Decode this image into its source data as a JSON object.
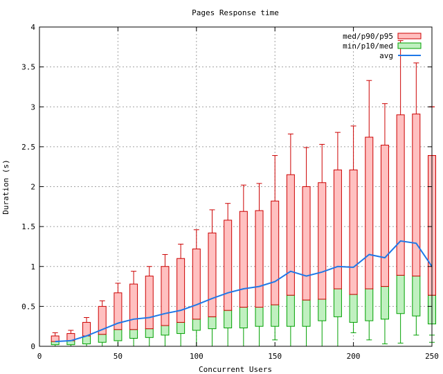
{
  "chart_data": {
    "type": "boxplot",
    "title": "Pages Response time",
    "xlabel": "Concurrent Users",
    "ylabel": "Duration (s)",
    "xlim": [
      0,
      250
    ],
    "ylim": [
      0,
      4
    ],
    "xticks": [
      "0",
      "50",
      "100",
      "150",
      "200",
      "250"
    ],
    "yticks": [
      "0",
      "0.5",
      "1",
      "1.5",
      "2",
      "2.5",
      "3",
      "3.5",
      "4"
    ],
    "grid": true,
    "legend_position": "top-right",
    "legend": [
      {
        "label": "med/p90/p95",
        "kind": "box",
        "fill": "#ffc0c0",
        "stroke": "#cc0000"
      },
      {
        "label": "min/p10/med",
        "kind": "box",
        "fill": "#c0f0c0",
        "stroke": "#00a000"
      },
      {
        "label": "avg",
        "kind": "line",
        "stroke": "#1e78e8"
      }
    ],
    "series": [
      {
        "name": "min",
        "values": [
          0.0,
          0.0,
          0.0,
          0.0,
          0.0,
          0.0,
          0.0,
          0.0,
          0.0,
          0.0,
          0.0,
          0.0,
          0.0,
          0.0,
          0.08,
          0.0,
          0.0,
          0.0,
          0.0,
          0.17,
          0.08,
          0.03,
          0.04,
          0.14,
          0.14,
          0.05
        ]
      },
      {
        "name": "p10",
        "values": [
          0.02,
          0.02,
          0.03,
          0.05,
          0.07,
          0.1,
          0.11,
          0.14,
          0.16,
          0.2,
          0.22,
          0.23,
          0.23,
          0.25,
          0.25,
          0.25,
          0.25,
          0.32,
          0.37,
          0.3,
          0.32,
          0.34,
          0.41,
          0.38,
          0.38,
          0.28
        ]
      },
      {
        "name": "med",
        "values": [
          0.06,
          0.07,
          0.13,
          0.15,
          0.21,
          0.21,
          0.22,
          0.26,
          0.3,
          0.34,
          0.37,
          0.45,
          0.49,
          0.49,
          0.52,
          0.64,
          0.58,
          0.59,
          0.72,
          0.65,
          0.72,
          0.75,
          0.89,
          0.88,
          0.88,
          0.64
        ]
      },
      {
        "name": "p90",
        "values": [
          0.13,
          0.16,
          0.3,
          0.5,
          0.67,
          0.78,
          0.88,
          1.0,
          1.1,
          1.22,
          1.42,
          1.58,
          1.69,
          1.7,
          1.82,
          2.15,
          2.0,
          2.05,
          2.21,
          2.21,
          2.62,
          2.52,
          2.9,
          2.91,
          2.39,
          2.39
        ]
      },
      {
        "name": "p95",
        "values": [
          0.17,
          0.2,
          0.36,
          0.57,
          0.79,
          0.94,
          1.0,
          1.15,
          1.28,
          1.46,
          1.71,
          1.79,
          2.02,
          2.04,
          2.39,
          2.66,
          2.49,
          2.53,
          2.68,
          2.76,
          3.33,
          3.04,
          3.83,
          3.55,
          3.0,
          3.0
        ]
      },
      {
        "name": "avg",
        "values": [
          0.06,
          0.07,
          0.13,
          0.21,
          0.29,
          0.34,
          0.36,
          0.41,
          0.45,
          0.52,
          0.6,
          0.67,
          0.72,
          0.75,
          0.81,
          0.94,
          0.88,
          0.93,
          1.0,
          0.99,
          1.15,
          1.11,
          1.32,
          1.29,
          1.0,
          1.0
        ]
      }
    ],
    "x": [
      10,
      20,
      30,
      40,
      50,
      60,
      70,
      80,
      90,
      100,
      110,
      120,
      130,
      140,
      150,
      160,
      170,
      180,
      190,
      200,
      210,
      220,
      230,
      240,
      250,
      250
    ]
  }
}
